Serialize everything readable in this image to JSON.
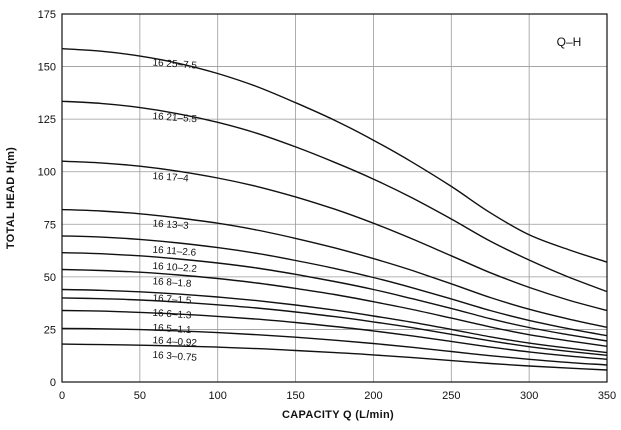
{
  "chart_data": {
    "type": "line",
    "title": "Q–H",
    "xlabel": "CAPACITY  Q (L/min)",
    "ylabel": "TOTAL HEAD  H(m)",
    "xlim": [
      0,
      350
    ],
    "ylim": [
      0,
      175
    ],
    "xticks": [
      0,
      50,
      100,
      150,
      200,
      250,
      300,
      350
    ],
    "yticks": [
      0,
      25,
      50,
      75,
      100,
      125,
      150,
      175
    ],
    "grid": true,
    "x": [
      0,
      25,
      50,
      75,
      100,
      125,
      150,
      175,
      200,
      225,
      250,
      275,
      300,
      325,
      350
    ],
    "series": [
      {
        "name": "16 25–7.5",
        "values": [
          158.5,
          157.3,
          155,
          151.5,
          146.7,
          140.5,
          132.8,
          124.5,
          115,
          104.5,
          93,
          80.5,
          70,
          63,
          57
        ]
      },
      {
        "name": "16 21–5.5",
        "values": [
          133.5,
          132.5,
          130.5,
          127.5,
          123.5,
          118.3,
          111.8,
          104.5,
          96.5,
          87.5,
          77.5,
          67,
          58,
          50,
          43
        ]
      },
      {
        "name": "16 17–4",
        "values": [
          105,
          104.2,
          102.6,
          100.2,
          97,
          93,
          88,
          82.2,
          75.5,
          68,
          60,
          52,
          45,
          39,
          34
        ]
      },
      {
        "name": "16 13–3",
        "values": [
          82,
          81.3,
          80,
          78,
          75.5,
          72.3,
          68.3,
          63.8,
          58.7,
          53,
          46.7,
          40.2,
          34.6,
          30,
          26
        ]
      },
      {
        "name": "16 11–2.6",
        "values": [
          69.5,
          68.9,
          67.8,
          66.1,
          63.9,
          61.2,
          57.8,
          54,
          49.7,
          44.8,
          39.5,
          34,
          29.3,
          25.4,
          22
        ]
      },
      {
        "name": "16 10–2.2",
        "values": [
          61.5,
          61,
          60,
          58.5,
          56.6,
          54.2,
          51.2,
          47.8,
          44,
          39.6,
          35,
          30.1,
          25.9,
          22.5,
          19.5
        ]
      },
      {
        "name": "16 8–1.8",
        "values": [
          53.5,
          53,
          52.2,
          50.9,
          49.2,
          47.1,
          44.5,
          41.6,
          38.2,
          34.5,
          30.4,
          26.2,
          22.5,
          19.6,
          17
        ]
      },
      {
        "name": "16 7–1.5",
        "values": [
          44,
          43.6,
          42.9,
          41.8,
          40.4,
          38.7,
          36.6,
          34.2,
          31.4,
          28.4,
          25,
          21.5,
          18.5,
          16.1,
          14
        ]
      },
      {
        "name": "16 6–1.3",
        "values": [
          40,
          39.6,
          39,
          38,
          36.7,
          35.2,
          33.3,
          31.1,
          28.6,
          25.8,
          22.7,
          19.6,
          16.8,
          14.6,
          12.7
        ]
      },
      {
        "name": "16 5–1.1",
        "values": [
          34,
          33.7,
          33.1,
          32.3,
          31.2,
          29.9,
          28.3,
          26.4,
          24.3,
          21.9,
          19.3,
          16.6,
          14.3,
          12.4,
          10.8
        ]
      },
      {
        "name": "16 4–0.92",
        "values": [
          25.5,
          25.3,
          24.9,
          24.3,
          23.5,
          22.5,
          21.3,
          19.9,
          18.3,
          16.5,
          14.5,
          12.5,
          10.8,
          9.3,
          8.1
        ]
      },
      {
        "name": "16 3–0.75",
        "values": [
          18,
          17.8,
          17.5,
          17.1,
          16.6,
          15.9,
          15,
          14,
          12.9,
          11.6,
          10.2,
          8.8,
          7.6,
          6.6,
          5.7
        ]
      }
    ],
    "labels": [
      {
        "text": "16 25–7.5",
        "x": 58,
        "y": 150.5
      },
      {
        "text": "16 21–5.5",
        "x": 58,
        "y": 125
      },
      {
        "text": "16 17–4",
        "x": 58,
        "y": 96.5
      },
      {
        "text": "16 13–3",
        "x": 58,
        "y": 74
      },
      {
        "text": "16 11–2.6",
        "x": 58,
        "y": 61.5
      },
      {
        "text": "16 10–2.2",
        "x": 58,
        "y": 53.8
      },
      {
        "text": "16 8–1.8",
        "x": 58,
        "y": 46.5
      },
      {
        "text": "16 7–1.5",
        "x": 58,
        "y": 38.5
      },
      {
        "text": "16 6–1.3",
        "x": 58,
        "y": 31.5
      },
      {
        "text": "16 5–1.1",
        "x": 58,
        "y": 24.5
      },
      {
        "text": "16 4–0.92",
        "x": 58,
        "y": 18.5
      },
      {
        "text": "16 3–0.75",
        "x": 58,
        "y": 11.5
      }
    ]
  }
}
